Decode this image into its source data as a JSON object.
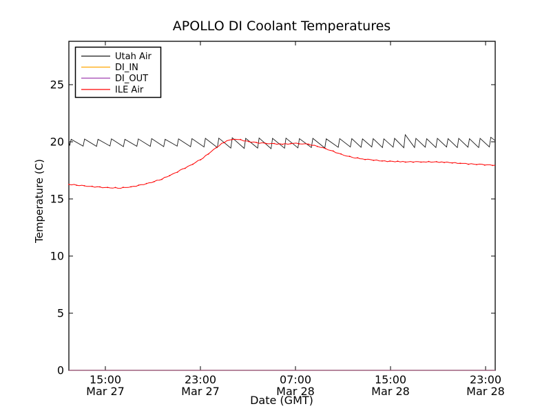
{
  "figure": {
    "title": "APOLLO DI Coolant Temperatures"
  },
  "chart_data": {
    "type": "line",
    "title": "APOLLO DI Coolant Temperatures",
    "xlabel": "Date (GMT)",
    "ylabel": "Temperature (C)",
    "x_unit": "hours since Mar 27 00:00 GMT",
    "xlim": [
      11.93,
      47.81
    ],
    "ylim": [
      0,
      28.8
    ],
    "grid": false,
    "legend_position": "upper left",
    "yticks": [
      {
        "value": 0,
        "label": "0"
      },
      {
        "value": 5,
        "label": "5"
      },
      {
        "value": 10,
        "label": "10"
      },
      {
        "value": 15,
        "label": "15"
      },
      {
        "value": 20,
        "label": "20"
      },
      {
        "value": 25,
        "label": "25"
      }
    ],
    "xticks": [
      {
        "hour": 15,
        "time": "15:00",
        "date": "Mar 27"
      },
      {
        "hour": 23,
        "time": "23:00",
        "date": "Mar 27"
      },
      {
        "hour": 31,
        "time": "07:00",
        "date": "Mar 28"
      },
      {
        "hour": 39,
        "time": "15:00",
        "date": "Mar 28"
      },
      {
        "hour": 47,
        "time": "23:00",
        "date": "Mar 28"
      }
    ],
    "series": [
      {
        "name": "Utah Air",
        "color": "#1a1a1a",
        "width": 0.9,
        "markers": false,
        "points": [
          [
            11.93,
            20.08
          ],
          [
            12.0,
            19.66
          ],
          [
            12.12,
            20.22
          ],
          [
            13.13,
            19.62
          ],
          [
            13.25,
            20.24
          ],
          [
            14.26,
            19.6
          ],
          [
            14.38,
            20.22
          ],
          [
            15.39,
            19.63
          ],
          [
            15.51,
            20.26
          ],
          [
            16.52,
            19.58
          ],
          [
            16.64,
            20.22
          ],
          [
            17.65,
            19.61
          ],
          [
            17.77,
            20.25
          ],
          [
            18.78,
            19.6
          ],
          [
            18.9,
            20.28
          ],
          [
            19.91,
            19.58
          ],
          [
            20.03,
            20.22
          ],
          [
            21.04,
            19.62
          ],
          [
            21.16,
            20.26
          ],
          [
            22.17,
            19.57
          ],
          [
            22.29,
            20.28
          ],
          [
            23.3,
            19.55
          ],
          [
            23.42,
            20.3
          ],
          [
            24.43,
            19.5
          ],
          [
            24.55,
            20.32
          ],
          [
            25.56,
            19.45
          ],
          [
            25.68,
            20.35
          ],
          [
            26.69,
            19.42
          ],
          [
            26.81,
            20.3
          ],
          [
            27.82,
            19.45
          ],
          [
            27.94,
            20.33
          ],
          [
            28.95,
            19.4
          ],
          [
            29.07,
            20.3
          ],
          [
            30.08,
            19.44
          ],
          [
            30.2,
            20.32
          ],
          [
            31.21,
            19.47
          ],
          [
            31.33,
            20.28
          ],
          [
            32.34,
            19.5
          ],
          [
            32.46,
            20.3
          ],
          [
            33.47,
            19.46
          ],
          [
            33.59,
            20.26
          ],
          [
            34.6,
            19.52
          ],
          [
            34.72,
            20.28
          ],
          [
            35.62,
            19.55
          ],
          [
            35.74,
            20.28
          ],
          [
            36.52,
            19.52
          ],
          [
            36.64,
            20.25
          ],
          [
            37.42,
            19.55
          ],
          [
            37.54,
            20.28
          ],
          [
            38.32,
            19.5
          ],
          [
            38.44,
            20.26
          ],
          [
            39.22,
            19.53
          ],
          [
            39.34,
            20.3
          ],
          [
            40.12,
            19.48
          ],
          [
            40.24,
            20.62
          ],
          [
            41.02,
            19.5
          ],
          [
            41.14,
            20.3
          ],
          [
            41.92,
            19.53
          ],
          [
            42.04,
            20.27
          ],
          [
            42.82,
            19.5
          ],
          [
            42.94,
            20.3
          ],
          [
            43.72,
            19.54
          ],
          [
            43.84,
            20.28
          ],
          [
            44.62,
            19.5
          ],
          [
            44.74,
            20.3
          ],
          [
            45.52,
            19.53
          ],
          [
            45.64,
            20.27
          ],
          [
            46.42,
            19.5
          ],
          [
            46.54,
            20.3
          ],
          [
            47.32,
            19.55
          ],
          [
            47.44,
            20.4
          ],
          [
            47.81,
            20.1
          ]
        ]
      },
      {
        "name": "DI_IN",
        "color": "#ffa500",
        "width": 1,
        "markers": false,
        "points": [
          [
            11.93,
            0
          ],
          [
            47.81,
            0
          ]
        ]
      },
      {
        "name": "DI_OUT",
        "color": "#a040b0",
        "width": 1,
        "opacity": 0.75,
        "markers": false,
        "points": [
          [
            11.93,
            0
          ],
          [
            47.81,
            0
          ]
        ]
      },
      {
        "name": "ILE Air",
        "color": "#ff0000",
        "width": 1,
        "markers": true,
        "points": [
          [
            11.93,
            16.27
          ],
          [
            12.8,
            16.2
          ],
          [
            13.67,
            16.1
          ],
          [
            14.54,
            16.02
          ],
          [
            15.41,
            15.97
          ],
          [
            16.28,
            15.96
          ],
          [
            17.15,
            16.05
          ],
          [
            18.02,
            16.22
          ],
          [
            18.89,
            16.45
          ],
          [
            19.76,
            16.75
          ],
          [
            20.63,
            17.15
          ],
          [
            21.5,
            17.6
          ],
          [
            22.36,
            18.05
          ],
          [
            23.23,
            18.6
          ],
          [
            24.1,
            19.3
          ],
          [
            24.8,
            19.85
          ],
          [
            25.43,
            20.18
          ],
          [
            26.13,
            20.22
          ],
          [
            26.88,
            20.05
          ],
          [
            27.7,
            19.92
          ],
          [
            28.74,
            19.85
          ],
          [
            29.9,
            19.8
          ],
          [
            31.06,
            19.85
          ],
          [
            32.1,
            19.78
          ],
          [
            33.09,
            19.55
          ],
          [
            33.96,
            19.25
          ],
          [
            34.83,
            18.9
          ],
          [
            35.81,
            18.62
          ],
          [
            36.86,
            18.48
          ],
          [
            38.3,
            18.32
          ],
          [
            40.04,
            18.25
          ],
          [
            41.78,
            18.25
          ],
          [
            43.52,
            18.22
          ],
          [
            45.09,
            18.1
          ],
          [
            46.71,
            18.0
          ],
          [
            47.81,
            17.95
          ]
        ]
      }
    ]
  }
}
